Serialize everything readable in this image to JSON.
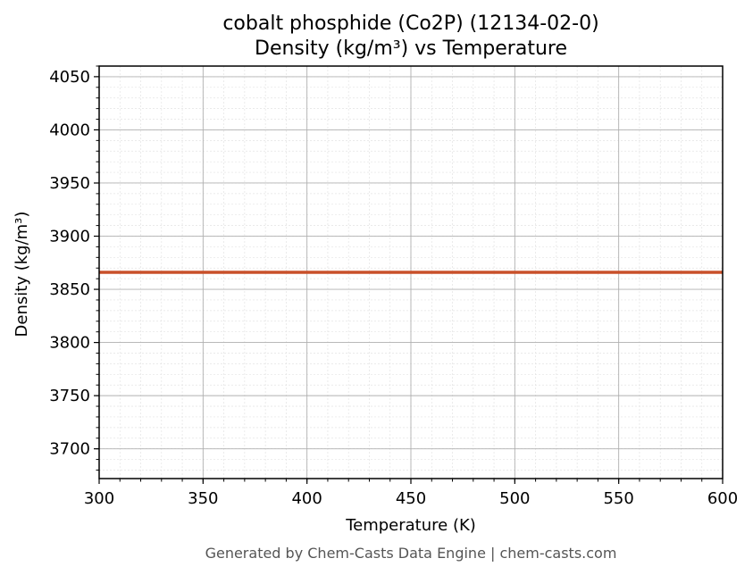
{
  "chart_data": {
    "type": "line",
    "title_line1": "cobalt phosphide (Co2P) (12134-02-0)",
    "title_line2": "Density (kg/m³) vs Temperature",
    "xlabel": "Temperature (K)",
    "ylabel": "Density (kg/m³)",
    "xlim": [
      300,
      600
    ],
    "ylim": [
      3672,
      4060
    ],
    "xticks": [
      300,
      350,
      400,
      450,
      500,
      550,
      600
    ],
    "yticks": [
      3700,
      3750,
      3800,
      3850,
      3900,
      3950,
      4000,
      4050
    ],
    "xtick_labels": [
      "300",
      "350",
      "400",
      "450",
      "500",
      "550",
      "600"
    ],
    "ytick_labels": [
      "3700",
      "3750",
      "3800",
      "3850",
      "3900",
      "3950",
      "4000",
      "4050"
    ],
    "grid": true,
    "series": [
      {
        "color": "#c8502a",
        "x": [
          300,
          600
        ],
        "y": [
          3866,
          3866
        ]
      }
    ]
  },
  "footer": {
    "text": "Generated by Chem-Casts Data Engine | chem-casts.com"
  }
}
